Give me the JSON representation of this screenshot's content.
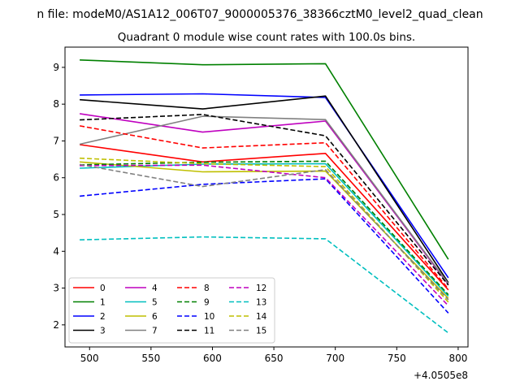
{
  "chart_data": {
    "type": "line",
    "suptitle": "n file: modeM0/AS1A12_006T07_9000005376_38366cztM0_level2_quad_clean",
    "title": "Quadrant 0 module wise count rates with 100.0s bins.",
    "xlabel": "",
    "ylabel": "",
    "x_offset_label": "+4.0505e8",
    "x": [
      492,
      592,
      692,
      792
    ],
    "xlim": [
      480,
      808
    ],
    "ylim": [
      1.4,
      9.55
    ],
    "xticks": [
      500,
      550,
      600,
      650,
      700,
      750,
      800
    ],
    "yticks": [
      2,
      3,
      4,
      5,
      6,
      7,
      8,
      9
    ],
    "grid": false,
    "legend": {
      "position": "lower-left",
      "columns": 4
    },
    "series": [
      {
        "name": "0",
        "color": "#ff0000",
        "dash": "solid",
        "values": [
          6.9,
          6.43,
          6.66,
          2.95
        ]
      },
      {
        "name": "1",
        "color": "#008000",
        "dash": "solid",
        "values": [
          9.2,
          9.07,
          9.1,
          3.78
        ]
      },
      {
        "name": "2",
        "color": "#0000ff",
        "dash": "solid",
        "values": [
          8.25,
          8.28,
          8.18,
          3.28
        ]
      },
      {
        "name": "3",
        "color": "#000000",
        "dash": "solid",
        "values": [
          8.12,
          7.87,
          8.22,
          3.15
        ]
      },
      {
        "name": "4",
        "color": "#bf00bf",
        "dash": "solid",
        "values": [
          7.74,
          7.24,
          7.54,
          3.1
        ]
      },
      {
        "name": "5",
        "color": "#00bfbf",
        "dash": "solid",
        "values": [
          6.26,
          6.37,
          6.38,
          2.78
        ]
      },
      {
        "name": "6",
        "color": "#bfbf00",
        "dash": "solid",
        "values": [
          6.43,
          6.16,
          6.18,
          2.72
        ]
      },
      {
        "name": "7",
        "color": "#808080",
        "dash": "solid",
        "values": [
          6.91,
          7.67,
          7.58,
          3.12
        ]
      },
      {
        "name": "8",
        "color": "#ff0000",
        "dash": "dashed",
        "values": [
          7.41,
          6.81,
          6.95,
          2.98
        ]
      },
      {
        "name": "9",
        "color": "#008000",
        "dash": "dashed",
        "values": [
          6.35,
          6.42,
          6.45,
          2.82
        ]
      },
      {
        "name": "10",
        "color": "#0000ff",
        "dash": "dashed",
        "values": [
          5.5,
          5.82,
          5.97,
          2.32
        ]
      },
      {
        "name": "11",
        "color": "#000000",
        "dash": "dashed",
        "values": [
          7.57,
          7.72,
          7.14,
          3.08
        ]
      },
      {
        "name": "12",
        "color": "#bf00bf",
        "dash": "dashed",
        "values": [
          6.33,
          6.34,
          6.0,
          2.52
        ]
      },
      {
        "name": "13",
        "color": "#00bfbf",
        "dash": "dashed",
        "values": [
          4.31,
          4.39,
          4.34,
          1.78
        ]
      },
      {
        "name": "14",
        "color": "#bfbf00",
        "dash": "dashed",
        "values": [
          6.53,
          6.38,
          6.3,
          2.62
        ]
      },
      {
        "name": "15",
        "color": "#808080",
        "dash": "dashed",
        "values": [
          6.36,
          5.76,
          6.22,
          2.68
        ]
      }
    ]
  }
}
